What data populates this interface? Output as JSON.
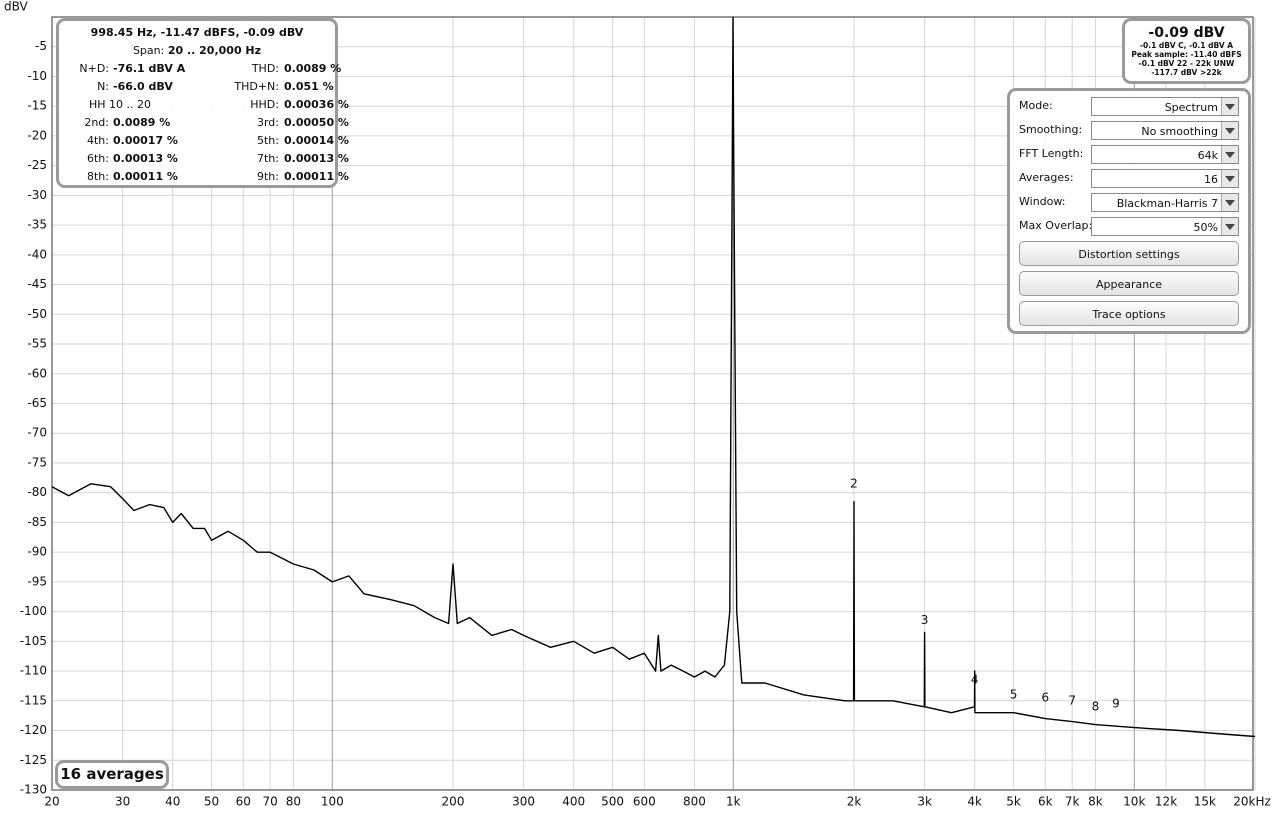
{
  "chart_data": {
    "type": "line",
    "ylabel": "dBV",
    "xlim": [
      20,
      20000
    ],
    "ylim": [
      -130,
      0
    ],
    "xscale": "log",
    "grid": true,
    "yticks": [
      -130,
      -125,
      -120,
      -115,
      -110,
      -105,
      -100,
      -95,
      -90,
      -85,
      -80,
      -75,
      -70,
      -65,
      -60,
      -55,
      -50,
      -45,
      -40,
      -35,
      -30,
      -25,
      -20,
      -15,
      -10,
      -5
    ],
    "xticks": [
      20,
      30,
      40,
      50,
      60,
      70,
      80,
      100,
      200,
      300,
      400,
      500,
      600,
      800,
      {
        "value": 1000,
        "label": "1k"
      },
      {
        "value": 2000,
        "label": "2k"
      },
      {
        "value": 3000,
        "label": "3k"
      },
      {
        "value": 4000,
        "label": "4k"
      },
      {
        "value": 5000,
        "label": "5k"
      },
      {
        "value": 6000,
        "label": "6k"
      },
      {
        "value": 7000,
        "label": "7k"
      },
      {
        "value": 8000,
        "label": "8k"
      },
      {
        "value": 10000,
        "label": "10k"
      },
      {
        "value": 12000,
        "label": "12k"
      },
      {
        "value": 15000,
        "label": "15k"
      },
      {
        "value": 20000,
        "label": "20kHz"
      }
    ],
    "x": [
      20,
      22,
      25,
      28,
      30,
      32,
      35,
      38,
      40,
      42,
      45,
      48,
      50,
      55,
      60,
      65,
      70,
      80,
      90,
      100,
      110,
      120,
      140,
      160,
      180,
      195,
      200,
      205,
      220,
      250,
      280,
      300,
      350,
      400,
      450,
      500,
      550,
      600,
      640,
      650,
      660,
      700,
      750,
      800,
      850,
      900,
      950,
      980,
      995,
      998.45,
      1002,
      1020,
      1050,
      1200,
      1500,
      1900,
      1995,
      2000,
      2005,
      2500,
      2995,
      3000,
      3005,
      3500,
      3995,
      4000,
      4005,
      5000,
      6000,
      7000,
      8000,
      10000,
      13000,
      16000,
      20000
    ],
    "series": [
      {
        "name": "Spectrum",
        "color": "#000000",
        "values": [
          -79,
          -80.5,
          -78.5,
          -79,
          -81,
          -83,
          -82,
          -82.5,
          -85,
          -83.5,
          -86,
          -86,
          -88,
          -86.5,
          -88,
          -90,
          -90,
          -92,
          -93,
          -95,
          -94,
          -97,
          -98,
          -99,
          -101,
          -102,
          -92,
          -102,
          -101,
          -104,
          -103,
          -104,
          -106,
          -105,
          -107,
          -106,
          -108,
          -107,
          -110,
          -104,
          -110,
          -109,
          -110,
          -111,
          -110,
          -111,
          -109,
          -100,
          -20,
          -0.09,
          -20,
          -100,
          -112,
          -112,
          -114,
          -115,
          -115,
          -81.5,
          -115,
          -115,
          -116,
          -103.5,
          -116,
          -117,
          -116,
          -110,
          -117,
          -117,
          -118,
          -118.5,
          -119,
          -119.5,
          -120,
          -120.5,
          -121
        ]
      }
    ],
    "annotations": [
      {
        "text": "2",
        "x": 2000,
        "y": -78.5
      },
      {
        "text": "3",
        "x": 3000,
        "y": -101.5
      },
      {
        "text": "4",
        "x": 4000,
        "y": -111.5
      },
      {
        "text": "5",
        "x": 5000,
        "y": -114
      },
      {
        "text": "6",
        "x": 6000,
        "y": -114.5
      },
      {
        "text": "7",
        "x": 7000,
        "y": -115
      },
      {
        "text": "8",
        "x": 8000,
        "y": -116
      },
      {
        "text": "9",
        "x": 9000,
        "y": -115.5
      }
    ]
  },
  "info_panel": {
    "headline": "998.45 Hz, -11.47 dBFS, -0.09 dBV",
    "span": {
      "label": "Span:",
      "value": "20 .. 20,000 Hz"
    },
    "rows": [
      [
        {
          "label": "N+D:",
          "value": "-76.1 dBV A"
        },
        {
          "label": "THD:",
          "value": "0.0089 %"
        }
      ],
      [
        {
          "label": "N:",
          "value": "-66.0 dBV"
        },
        {
          "label": "THD+N:",
          "value": "0.051 %"
        }
      ],
      [
        {
          "label": "HH 10 .. 20"
        },
        {
          "label": "HHD:",
          "value": "0.00036 %"
        }
      ],
      [
        {
          "label": "2nd:",
          "value": "0.0089 %"
        },
        {
          "label": "3rd:",
          "value": "0.00050 %"
        }
      ],
      [
        {
          "label": "4th:",
          "value": "0.00017 %"
        },
        {
          "label": "5th:",
          "value": "0.00014 %"
        }
      ],
      [
        {
          "label": "6th:",
          "value": "0.00013 %"
        },
        {
          "label": "7th:",
          "value": "0.00013 %"
        }
      ],
      [
        {
          "label": "8th:",
          "value": "0.00011 %"
        },
        {
          "label": "9th:",
          "value": "0.00011 %"
        }
      ]
    ]
  },
  "level_panel": {
    "level": "-0.09 dBV",
    "lines": [
      "-0.1 dBV C, -0.1 dBV A",
      "Peak sample: -11.40 dBFS",
      "-0.1 dBV 22 - 22k UNW",
      "-117.7 dBV >22k"
    ]
  },
  "controls_panel": {
    "settings": [
      {
        "label": "Mode:",
        "value": "Spectrum"
      },
      {
        "label": "Smoothing:",
        "value": "No  smoothing"
      },
      {
        "label": "FFT Length:",
        "value": "64k"
      },
      {
        "label": "Averages:",
        "value": "16"
      },
      {
        "label": "Window:",
        "value": "Blackman-Harris 7"
      },
      {
        "label": "Max Overlap:",
        "value": "50%"
      }
    ],
    "buttons": [
      "Distortion settings",
      "Appearance",
      "Trace options"
    ]
  },
  "averages_badge": "16 averages"
}
